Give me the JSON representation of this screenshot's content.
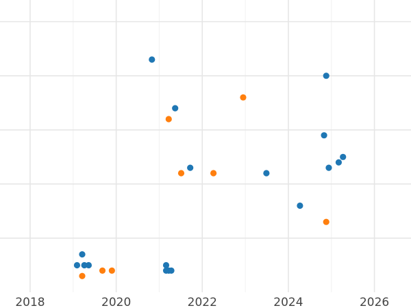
{
  "chart_data": {
    "type": "scatter",
    "title": "",
    "xlabel": "",
    "ylabel": "",
    "grid": true,
    "xlim": [
      2017.3,
      2026.85
    ],
    "ylim": [
      0,
      27
    ],
    "x_ticks": [
      2018,
      2020,
      2022,
      2024,
      2026
    ],
    "x_tick_labels": [
      "2018",
      "2020",
      "2022",
      "2024",
      "2026"
    ],
    "y_gridlines": [
      5,
      10,
      15,
      20,
      25
    ],
    "series": [
      {
        "color": "#1f77b4",
        "points": [
          {
            "x": 2020.83,
            "y": 21.5
          },
          {
            "x": 2024.88,
            "y": 20.0
          },
          {
            "x": 2021.37,
            "y": 17.0
          },
          {
            "x": 2024.83,
            "y": 14.5
          },
          {
            "x": 2025.27,
            "y": 12.5
          },
          {
            "x": 2025.17,
            "y": 12.0
          },
          {
            "x": 2024.94,
            "y": 11.5
          },
          {
            "x": 2021.72,
            "y": 11.5
          },
          {
            "x": 2023.49,
            "y": 11.0
          },
          {
            "x": 2024.27,
            "y": 8.0
          },
          {
            "x": 2019.21,
            "y": 3.5
          },
          {
            "x": 2019.09,
            "y": 2.5
          },
          {
            "x": 2019.26,
            "y": 2.5
          },
          {
            "x": 2019.36,
            "y": 2.5
          },
          {
            "x": 2021.16,
            "y": 2.5
          },
          {
            "x": 2021.16,
            "y": 2.0
          },
          {
            "x": 2021.22,
            "y": 2.0
          },
          {
            "x": 2021.28,
            "y": 2.0
          }
        ]
      },
      {
        "color": "#ff7f0e",
        "points": [
          {
            "x": 2022.95,
            "y": 18.0
          },
          {
            "x": 2021.22,
            "y": 16.0
          },
          {
            "x": 2021.51,
            "y": 11.0
          },
          {
            "x": 2022.26,
            "y": 11.0
          },
          {
            "x": 2024.88,
            "y": 6.5
          },
          {
            "x": 2019.21,
            "y": 1.5
          },
          {
            "x": 2019.68,
            "y": 2.0
          },
          {
            "x": 2019.9,
            "y": 2.0
          }
        ]
      }
    ]
  }
}
